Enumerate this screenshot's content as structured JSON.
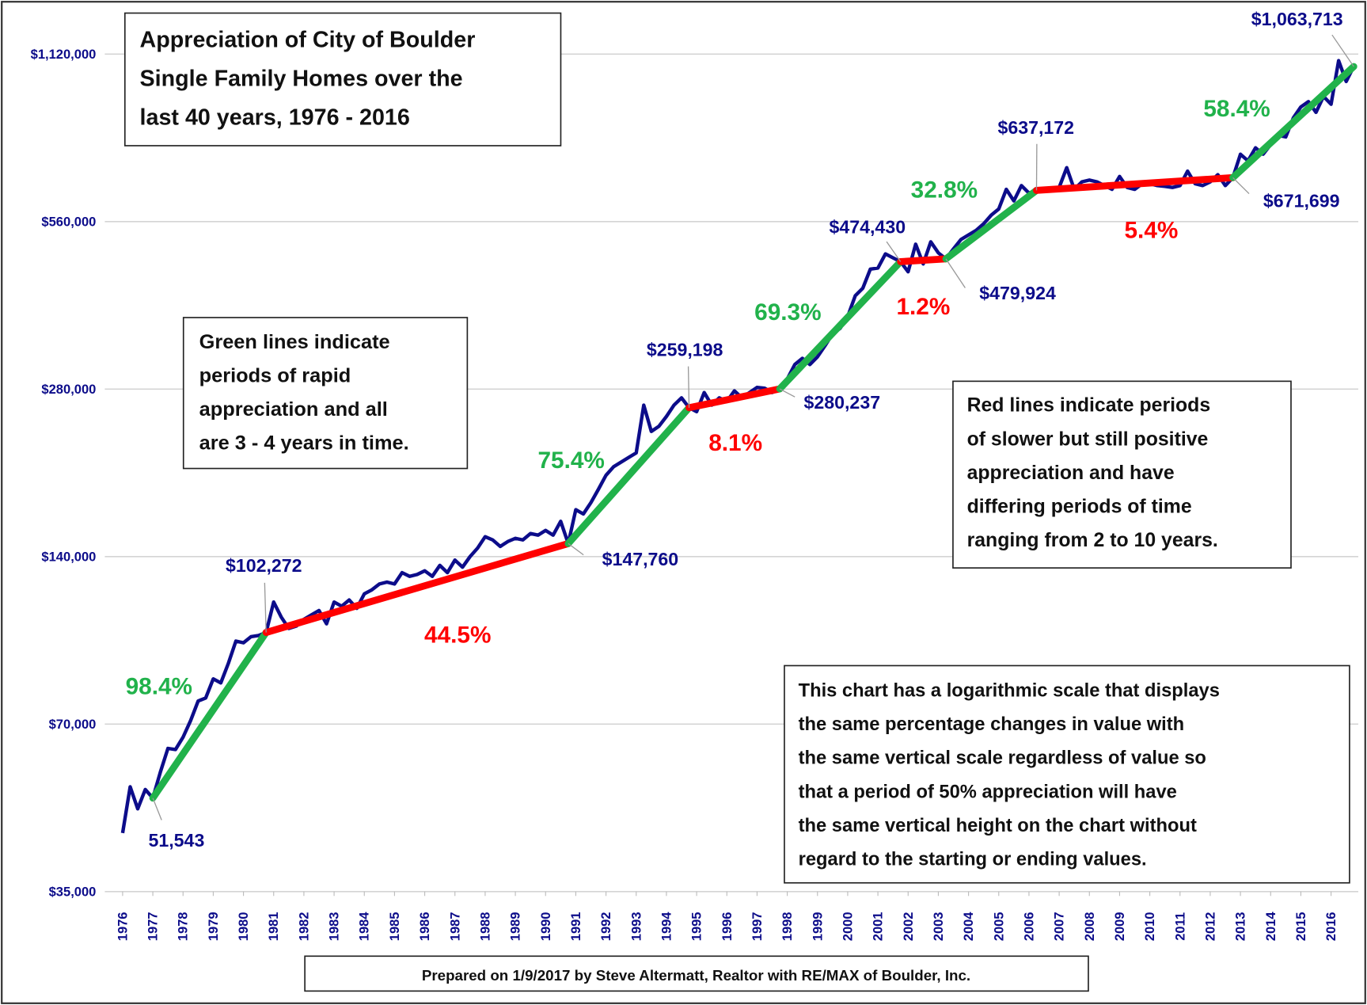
{
  "chart_data": {
    "type": "line",
    "title": [
      "Appreciation of City of Boulder",
      "Single Family Homes over the",
      "last 40 years, 1976 - 2016"
    ],
    "log_scale": true,
    "grid": true,
    "xlim": [
      1975.7,
      2016.9
    ],
    "xticks": [
      1976,
      1977,
      1978,
      1979,
      1980,
      1981,
      1982,
      1983,
      1984,
      1985,
      1986,
      1987,
      1988,
      1989,
      1990,
      1991,
      1992,
      1993,
      1994,
      1995,
      1996,
      1997,
      1998,
      1999,
      2000,
      2001,
      2002,
      2003,
      2004,
      2005,
      2006,
      2007,
      2008,
      2009,
      2010,
      2011,
      2012,
      2013,
      2014,
      2015,
      2016
    ],
    "ylim": [
      35000,
      1330000
    ],
    "yticks": [
      {
        "value": 35000,
        "label": "$35,000"
      },
      {
        "value": 70000,
        "label": "$70,000"
      },
      {
        "value": 140000,
        "label": "$140,000"
      },
      {
        "value": 280000,
        "label": "$280,000"
      },
      {
        "value": 560000,
        "label": "$560,000"
      },
      {
        "value": 1120000,
        "label": "$1,120,000"
      }
    ],
    "series": [
      {
        "color": "#0c0c8a",
        "x": [
          1976,
          1976.25,
          1976.5,
          1976.75,
          1977,
          1977.25,
          1977.5,
          1977.75,
          1978,
          1978.25,
          1978.5,
          1978.75,
          1979,
          1979.25,
          1979.5,
          1979.75,
          1980,
          1980.25,
          1980.5,
          1980.75,
          1981,
          1981.25,
          1981.5,
          1981.75,
          1982,
          1982.25,
          1982.5,
          1982.75,
          1983,
          1983.25,
          1983.5,
          1983.75,
          1984,
          1984.25,
          1984.5,
          1984.75,
          1985,
          1985.25,
          1985.5,
          1985.75,
          1986,
          1986.25,
          1986.5,
          1986.75,
          1987,
          1987.25,
          1987.5,
          1987.75,
          1988,
          1988.25,
          1988.5,
          1988.75,
          1989,
          1989.25,
          1989.5,
          1989.75,
          1990,
          1990.25,
          1990.5,
          1990.75,
          1991,
          1991.25,
          1991.5,
          1991.75,
          1992,
          1992.25,
          1992.5,
          1992.75,
          1993,
          1993.25,
          1993.5,
          1993.75,
          1994,
          1994.25,
          1994.5,
          1994.75,
          1995,
          1995.25,
          1995.5,
          1995.75,
          1996,
          1996.25,
          1996.5,
          1996.75,
          1997,
          1997.25,
          1997.5,
          1997.75,
          1998,
          1998.25,
          1998.5,
          1998.75,
          1999,
          1999.25,
          1999.5,
          1999.75,
          2000,
          2000.25,
          2000.5,
          2000.75,
          2001,
          2001.25,
          2001.5,
          2001.75,
          2002,
          2002.25,
          2002.5,
          2002.75,
          2003,
          2003.25,
          2003.5,
          2003.75,
          2004,
          2004.25,
          2004.5,
          2004.75,
          2005,
          2005.25,
          2005.5,
          2005.75,
          2006,
          2006.25,
          2006.5,
          2006.75,
          2007,
          2007.25,
          2007.5,
          2007.75,
          2008,
          2008.25,
          2008.5,
          2008.75,
          2009,
          2009.25,
          2009.5,
          2009.75,
          2010,
          2010.25,
          2010.5,
          2010.75,
          2011,
          2011.25,
          2011.5,
          2011.75,
          2012,
          2012.25,
          2012.5,
          2012.75,
          2013,
          2013.25,
          2013.5,
          2013.75,
          2014,
          2014.25,
          2014.5,
          2014.75,
          2015,
          2015.25,
          2015.5,
          2015.75,
          2016,
          2016.25,
          2016.5,
          2016.75
        ],
        "values": [
          44600,
          54000,
          49300,
          53400,
          51543,
          57400,
          63300,
          63000,
          66300,
          71000,
          77000,
          78000,
          84400,
          83000,
          90000,
          98700,
          98000,
          100500,
          101000,
          102272,
          116000,
          109000,
          104000,
          105000,
          108000,
          110000,
          112000,
          106000,
          116000,
          114000,
          117000,
          113000,
          120000,
          122000,
          125000,
          126000,
          125000,
          131000,
          129000,
          130000,
          132000,
          129000,
          135000,
          131000,
          138000,
          134000,
          140000,
          145000,
          152000,
          150000,
          146000,
          149000,
          151000,
          150000,
          154000,
          153000,
          156000,
          153000,
          162000,
          147760,
          170000,
          167000,
          175000,
          185000,
          196000,
          203000,
          207000,
          211000,
          215000,
          262000,
          235000,
          240000,
          250000,
          262000,
          270000,
          259198,
          255000,
          276000,
          262000,
          270000,
          266000,
          278000,
          270000,
          276000,
          282000,
          281000,
          276000,
          280237,
          292000,
          310000,
          318000,
          310000,
          320000,
          335000,
          352000,
          360000,
          378000,
          412000,
          425000,
          460000,
          462000,
          490000,
          482000,
          474430,
          455000,
          510000,
          470000,
          515000,
          492000,
          479924,
          500000,
          520000,
          530000,
          540000,
          555000,
          575000,
          590000,
          640000,
          610000,
          650000,
          630000,
          637172,
          640000,
          642000,
          645000,
          700000,
          640000,
          660000,
          665000,
          660000,
          650000,
          640000,
          675000,
          645000,
          640000,
          655000,
          655000,
          650000,
          648000,
          645000,
          650000,
          690000,
          655000,
          650000,
          660000,
          680000,
          650000,
          671699,
          740000,
          720000,
          760000,
          740000,
          770000,
          800000,
          795000,
          860000,
          900000,
          920000,
          880000,
          940000,
          910000,
          1090000,
          1000000,
          1063713
        ]
      }
    ],
    "segments": [
      {
        "x": [
          1977,
          1980.75
        ],
        "values": [
          51543,
          102272
        ],
        "color": "#21b24b",
        "label": "98.4%"
      },
      {
        "x": [
          1980.75,
          1990.75
        ],
        "values": [
          102272,
          147760
        ],
        "color": "#ff0000",
        "label": "44.5%"
      },
      {
        "x": [
          1990.75,
          1994.75
        ],
        "values": [
          147760,
          259198
        ],
        "color": "#21b24b",
        "label": "75.4%"
      },
      {
        "x": [
          1994.75,
          1997.75
        ],
        "values": [
          259198,
          280237
        ],
        "color": "#ff0000",
        "label": "8.1%"
      },
      {
        "x": [
          1997.75,
          2001.75
        ],
        "values": [
          280237,
          474430
        ],
        "color": "#21b24b",
        "label": "69.3%"
      },
      {
        "x": [
          2001.75,
          2003.25
        ],
        "values": [
          474430,
          479924
        ],
        "color": "#ff0000",
        "label": "1.2%"
      },
      {
        "x": [
          2003.25,
          2006.25
        ],
        "values": [
          479924,
          637172
        ],
        "color": "#21b24b",
        "label": "32.8%"
      },
      {
        "x": [
          2006.25,
          2012.75
        ],
        "values": [
          637172,
          671699
        ],
        "color": "#ff0000",
        "label": "5.4%"
      },
      {
        "x": [
          2012.75,
          2016.75
        ],
        "values": [
          671699,
          1063713
        ],
        "color": "#21b24b",
        "label": "58.4%"
      }
    ],
    "point_labels": [
      {
        "x": 1977,
        "value": 51543,
        "label": "51,543"
      },
      {
        "x": 1980.75,
        "value": 102272,
        "label": "$102,272"
      },
      {
        "x": 1990.75,
        "value": 147760,
        "label": "$147,760"
      },
      {
        "x": 1994.75,
        "value": 259198,
        "label": "$259,198"
      },
      {
        "x": 1997.75,
        "value": 280237,
        "label": "$280,237"
      },
      {
        "x": 2001.75,
        "value": 474430,
        "label": "$474,430"
      },
      {
        "x": 2003.25,
        "value": 479924,
        "label": "$479,924"
      },
      {
        "x": 2006.25,
        "value": 637172,
        "label": "$637,172"
      },
      {
        "x": 2012.75,
        "value": 671699,
        "label": "$671,699"
      },
      {
        "x": 2016.75,
        "value": 1063713,
        "label": "$1,063,713"
      }
    ],
    "notes": [
      [
        "Green lines indicate",
        "periods of rapid",
        "appreciation and all",
        "are 3 - 4 years in time."
      ],
      [
        "Red lines indicate periods",
        "of slower but still positive",
        "appreciation and have",
        "differing periods of time",
        "ranging from 2 to 10 years."
      ],
      [
        "This chart has a logarithmic scale that displays",
        "the same percentage changes in value with",
        "the same vertical scale regardless of value so",
        "that a period of 50% appreciation will have",
        "the same vertical height on the chart without",
        "regard to the starting or ending values."
      ]
    ],
    "footer": "Prepared on 1/9/2017 by Steve Altermatt, Realtor with RE/MAX of Boulder, Inc."
  }
}
